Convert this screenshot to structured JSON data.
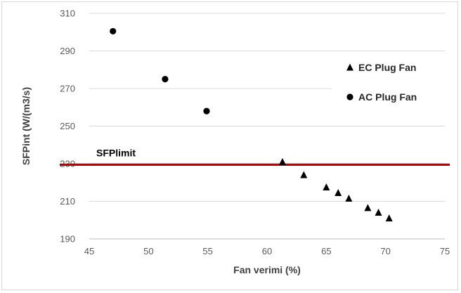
{
  "chart_data": {
    "type": "scatter",
    "title": "",
    "xlabel": "Fan verimi (%)",
    "ylabel": "SFPint  (W/(m3/s)",
    "xlim": [
      45,
      75
    ],
    "ylim": [
      190,
      310
    ],
    "xticks": [
      45,
      50,
      55,
      60,
      65,
      70,
      75
    ],
    "yticks": [
      190,
      210,
      230,
      250,
      270,
      290,
      310
    ],
    "grid": "horizontal",
    "legend_position": "right",
    "series": [
      {
        "name": "EC Plug Fan",
        "marker": "triangle",
        "color": "#000000",
        "points": [
          {
            "x": 61.3,
            "y": 231
          },
          {
            "x": 63.1,
            "y": 224
          },
          {
            "x": 65.0,
            "y": 217.5
          },
          {
            "x": 66.0,
            "y": 214.5
          },
          {
            "x": 66.9,
            "y": 211.5
          },
          {
            "x": 68.5,
            "y": 206.5
          },
          {
            "x": 69.4,
            "y": 204
          },
          {
            "x": 70.3,
            "y": 201
          }
        ]
      },
      {
        "name": "AC Plug Fan",
        "marker": "circle",
        "color": "#000000",
        "points": [
          {
            "x": 47.0,
            "y": 300.5
          },
          {
            "x": 51.4,
            "y": 275
          },
          {
            "x": 54.9,
            "y": 258
          }
        ]
      }
    ],
    "reference_line": {
      "label": "SFPlimit",
      "y": 229.5,
      "color": "#c00000"
    }
  }
}
